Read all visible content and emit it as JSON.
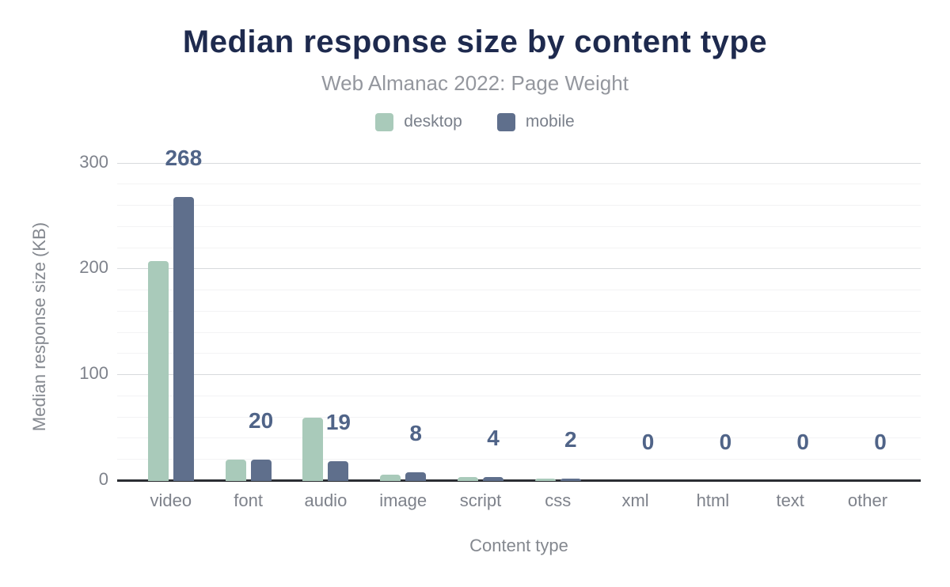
{
  "chart_data": {
    "type": "bar",
    "title": "Median response size by content type",
    "subtitle": "Web Almanac 2022: Page Weight",
    "xlabel": "Content type",
    "ylabel": "Median response size (KB)",
    "categories": [
      "video",
      "font",
      "audio",
      "image",
      "script",
      "css",
      "xml",
      "html",
      "text",
      "other"
    ],
    "series": [
      {
        "name": "desktop",
        "color": "#a9caba",
        "values": [
          208,
          20,
          60,
          6,
          4,
          2,
          0,
          0,
          0,
          0
        ]
      },
      {
        "name": "mobile",
        "color": "#5f6f8c",
        "values": [
          268,
          20,
          19,
          8,
          4,
          2,
          0,
          0,
          0,
          0
        ]
      }
    ],
    "data_labels": {
      "shown_for_series": "mobile",
      "values": [
        "268",
        "20",
        "19",
        "8",
        "4",
        "2",
        "0",
        "0",
        "0",
        "0"
      ]
    },
    "yticks": [
      0,
      100,
      200,
      300
    ],
    "ylim": [
      0,
      300
    ],
    "grid": {
      "minor_step": 20,
      "major_step": 100,
      "shown": true
    },
    "legend_position": "top",
    "colors": {
      "title": "#1e2a4e",
      "subtitle": "#94979e",
      "value_label": "#506488",
      "axis_text": "#7e828b",
      "axis_line": "#2c2e33"
    }
  }
}
